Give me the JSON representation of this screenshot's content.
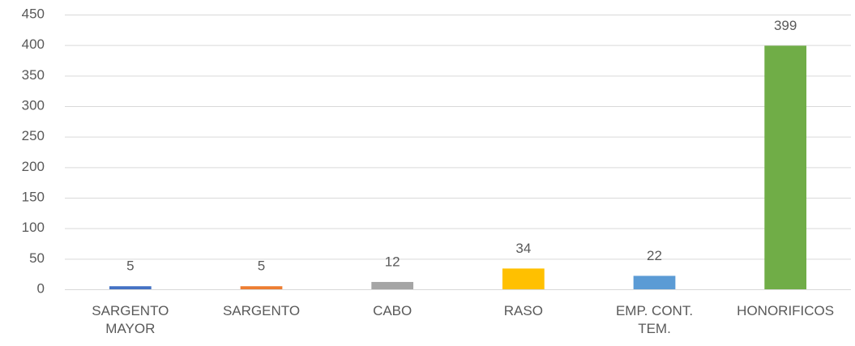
{
  "chart_data": {
    "type": "bar",
    "categories": [
      "SARGENTO MAYOR",
      "SARGENTO",
      "CABO",
      "RASO",
      "EMP. CONT. TEM.",
      "HONORIFICOS"
    ],
    "values": [
      5,
      5,
      12,
      34,
      22,
      399
    ],
    "colors": [
      "#4472c4",
      "#ed7d31",
      "#a5a5a5",
      "#ffc000",
      "#5b9bd5",
      "#70ad47"
    ],
    "ylim": [
      0,
      450
    ],
    "yticks": [
      0,
      50,
      100,
      150,
      200,
      250,
      300,
      350,
      400,
      450
    ],
    "grid": true
  }
}
